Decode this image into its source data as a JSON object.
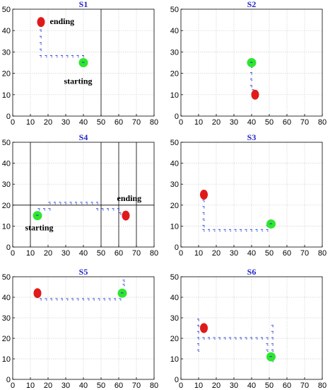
{
  "chart_data": [
    {
      "type": "scatter",
      "title": "S1",
      "xlim": [
        0,
        80
      ],
      "ylim": [
        0,
        50
      ],
      "xticks": [
        "0",
        "10",
        "20",
        "30",
        "40",
        "50",
        "60",
        "70",
        "80"
      ],
      "yticks": [
        "0",
        "10",
        "20",
        "30",
        "40",
        "50"
      ],
      "grid": true,
      "vlines": [
        50
      ],
      "hlines": [],
      "path": [
        [
          16,
          40
        ],
        [
          16,
          37
        ],
        [
          16,
          34
        ],
        [
          16,
          31
        ],
        [
          16,
          28
        ],
        [
          19,
          28
        ],
        [
          22,
          28
        ],
        [
          25,
          28
        ],
        [
          28,
          28
        ],
        [
          31,
          28
        ],
        [
          34,
          28
        ],
        [
          37,
          28
        ],
        [
          40,
          28
        ],
        [
          40,
          26
        ]
      ],
      "start": [
        40,
        25
      ],
      "end": [
        16,
        44
      ],
      "annotations": [
        {
          "text": "ending",
          "x": 21,
          "y": 43
        },
        {
          "text": "starting",
          "x": 29,
          "y": 15
        }
      ]
    },
    {
      "type": "scatter",
      "title": "S2",
      "xlim": [
        0,
        80
      ],
      "ylim": [
        0,
        50
      ],
      "xticks": [
        "0",
        "10",
        "20",
        "30",
        "40",
        "50",
        "60",
        "70",
        "80"
      ],
      "yticks": [
        "0",
        "10",
        "20",
        "30",
        "40",
        "50"
      ],
      "grid": true,
      "vlines": [],
      "hlines": [],
      "path": [
        [
          40,
          23
        ],
        [
          40,
          20
        ],
        [
          40,
          17
        ],
        [
          40,
          14
        ],
        [
          41,
          12
        ]
      ],
      "start": [
        40,
        25
      ],
      "end": [
        42,
        10
      ],
      "annotations": []
    },
    {
      "type": "scatter",
      "title": "S4",
      "xlim": [
        0,
        80
      ],
      "ylim": [
        0,
        50
      ],
      "xticks": [
        "0",
        "10",
        "20",
        "30",
        "40",
        "50",
        "60",
        "70",
        "80"
      ],
      "yticks": [
        "0",
        "10",
        "20",
        "30",
        "40",
        "50"
      ],
      "grid": true,
      "vlines": [
        10,
        50,
        60,
        70
      ],
      "hlines": [
        20
      ],
      "path": [
        [
          15,
          16
        ],
        [
          15,
          18
        ],
        [
          18,
          18
        ],
        [
          21,
          18
        ],
        [
          21,
          21
        ],
        [
          24,
          21
        ],
        [
          27,
          21
        ],
        [
          30,
          21
        ],
        [
          33,
          21
        ],
        [
          36,
          21
        ],
        [
          39,
          21
        ],
        [
          42,
          21
        ],
        [
          45,
          21
        ],
        [
          48,
          21
        ],
        [
          48,
          18
        ],
        [
          51,
          18
        ],
        [
          54,
          18
        ],
        [
          57,
          18
        ],
        [
          60,
          18
        ],
        [
          61,
          16
        ]
      ],
      "start": [
        14,
        15
      ],
      "end": [
        64,
        15
      ],
      "annotations": [
        {
          "text": "ending",
          "x": 59,
          "y": 22
        },
        {
          "text": "starting",
          "x": 7,
          "y": 8
        }
      ]
    },
    {
      "type": "scatter",
      "title": "S3",
      "xlim": [
        0,
        80
      ],
      "ylim": [
        0,
        50
      ],
      "xticks": [
        "0",
        "10",
        "20",
        "30",
        "40",
        "50",
        "60",
        "70",
        "80"
      ],
      "yticks": [
        "0",
        "10",
        "20",
        "30",
        "40",
        "50"
      ],
      "grid": true,
      "vlines": [],
      "hlines": [],
      "path": [
        [
          13,
          22
        ],
        [
          13,
          19
        ],
        [
          13,
          16
        ],
        [
          13,
          13
        ],
        [
          13,
          10
        ],
        [
          13,
          8
        ],
        [
          16,
          8
        ],
        [
          19,
          8
        ],
        [
          22,
          8
        ],
        [
          25,
          8
        ],
        [
          28,
          8
        ],
        [
          31,
          8
        ],
        [
          34,
          8
        ],
        [
          37,
          8
        ],
        [
          40,
          8
        ],
        [
          43,
          8
        ],
        [
          46,
          8
        ],
        [
          49,
          8
        ],
        [
          49,
          10
        ]
      ],
      "start": [
        51,
        11
      ],
      "end": [
        13,
        25
      ],
      "annotations": []
    },
    {
      "type": "scatter",
      "title": "S5",
      "xlim": [
        0,
        80
      ],
      "ylim": [
        0,
        50
      ],
      "xticks": [
        "0",
        "10",
        "20",
        "30",
        "40",
        "50",
        "60",
        "70",
        "80"
      ],
      "yticks": [
        "0",
        "10",
        "20",
        "30",
        "40",
        "50"
      ],
      "grid": true,
      "vlines": [],
      "hlines": [],
      "path": [
        [
          16,
          39
        ],
        [
          19,
          39
        ],
        [
          22,
          39
        ],
        [
          25,
          39
        ],
        [
          28,
          39
        ],
        [
          31,
          39
        ],
        [
          34,
          39
        ],
        [
          37,
          39
        ],
        [
          40,
          39
        ],
        [
          43,
          39
        ],
        [
          46,
          39
        ],
        [
          49,
          39
        ],
        [
          52,
          39
        ],
        [
          55,
          39
        ],
        [
          58,
          39
        ],
        [
          61,
          39
        ],
        [
          62,
          41
        ],
        [
          63,
          43
        ],
        [
          63,
          46
        ],
        [
          63,
          48
        ]
      ],
      "start": [
        62,
        42
      ],
      "end": [
        14,
        42
      ],
      "annotations": []
    },
    {
      "type": "scatter",
      "title": "S6",
      "xlim": [
        0,
        80
      ],
      "ylim": [
        0,
        50
      ],
      "xticks": [
        "0",
        "10",
        "20",
        "30",
        "40",
        "50",
        "60",
        "70",
        "80"
      ],
      "yticks": [
        "0",
        "10",
        "20",
        "30",
        "40",
        "50"
      ],
      "grid": true,
      "vlines": [],
      "hlines": [],
      "path": [
        [
          10,
          29
        ],
        [
          10,
          26
        ],
        [
          10,
          23
        ],
        [
          10,
          20
        ],
        [
          10,
          17
        ],
        [
          10,
          14
        ],
        [
          13,
          20
        ],
        [
          16,
          20
        ],
        [
          19,
          20
        ],
        [
          22,
          20
        ],
        [
          25,
          20
        ],
        [
          28,
          20
        ],
        [
          31,
          20
        ],
        [
          34,
          20
        ],
        [
          37,
          20
        ],
        [
          40,
          20
        ],
        [
          43,
          20
        ],
        [
          46,
          20
        ],
        [
          49,
          20
        ],
        [
          49,
          17
        ],
        [
          49,
          14
        ],
        [
          52,
          26
        ],
        [
          52,
          23
        ],
        [
          52,
          20
        ],
        [
          52,
          17
        ],
        [
          52,
          14
        ],
        [
          50,
          12
        ],
        [
          52,
          9
        ]
      ],
      "start": [
        51,
        11
      ],
      "end": [
        13,
        25
      ],
      "annotations": []
    }
  ]
}
